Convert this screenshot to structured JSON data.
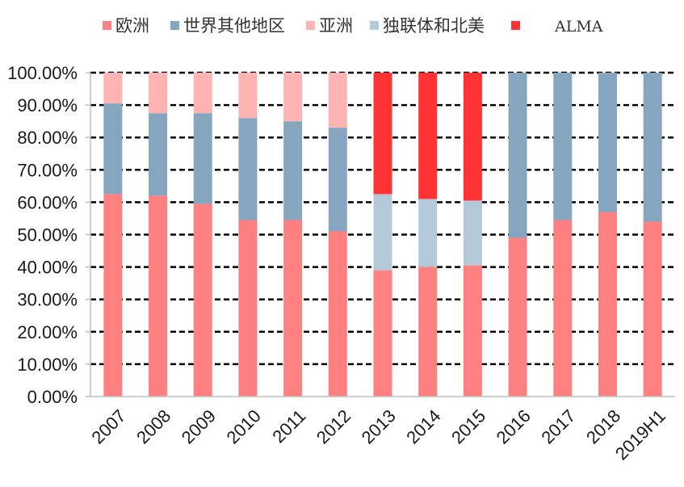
{
  "chart_data": {
    "type": "bar",
    "stacked": true,
    "title": "",
    "xlabel": "",
    "ylabel": "",
    "ylim": [
      0,
      100
    ],
    "y_tick_labels": [
      "0.00%",
      "10.00%",
      "20.00%",
      "30.00%",
      "40.00%",
      "50.00%",
      "60.00%",
      "70.00%",
      "80.00%",
      "90.00%",
      "100.00%"
    ],
    "grid": "horizontal dashed",
    "legend_position": "top",
    "categories": [
      "2007",
      "2008",
      "2009",
      "2010",
      "2011",
      "2012",
      "2013",
      "2014",
      "2015",
      "2016",
      "2017",
      "2018",
      "2019H1"
    ],
    "series": [
      {
        "name": "欧洲",
        "color": "#ff8080",
        "values": [
          62.5,
          62,
          59.5,
          54.5,
          54.5,
          51,
          39,
          40,
          40.5,
          49,
          54.5,
          57,
          54
        ]
      },
      {
        "name": "世界其他地区",
        "color": "#86a6bf",
        "values": [
          28,
          25.5,
          28,
          31.5,
          30.5,
          32,
          0,
          0,
          0,
          51,
          45.5,
          43,
          46
        ]
      },
      {
        "name": "亚洲",
        "color": "#ffb3b3",
        "values": [
          9.5,
          12.5,
          12.5,
          14,
          15,
          17,
          0,
          0,
          0,
          0,
          0,
          0,
          0
        ]
      },
      {
        "name": "独联体和北美",
        "color": "#b4c9d9",
        "values": [
          0,
          0,
          0,
          0,
          0,
          0,
          23.5,
          21,
          20,
          0,
          0,
          0,
          0
        ]
      },
      {
        "name": "ALMA",
        "color": "#ff3333",
        "values": [
          0,
          0,
          0,
          0,
          0,
          0,
          37.5,
          39,
          39.5,
          0,
          0,
          0,
          0
        ]
      }
    ]
  }
}
